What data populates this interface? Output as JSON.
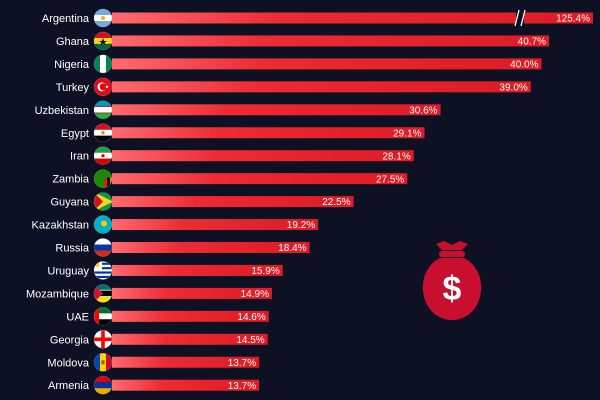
{
  "chart_data": {
    "type": "bar",
    "orientation": "horizontal",
    "title": "",
    "xlabel": "",
    "ylabel": "",
    "unit": "%",
    "xlim": [
      0,
      42
    ],
    "axis_break": {
      "category": "Argentina",
      "note": "bar truncated with a break mark"
    },
    "grid": false,
    "bar_color": "#e8222b",
    "bar_gradient_start": "#ff6a6f",
    "categories": [
      "Argentina",
      "Ghana",
      "Nigeria",
      "Turkey",
      "Uzbekistan",
      "Egypt",
      "Iran",
      "Zambia",
      "Guyana",
      "Kazakhstan",
      "Russia",
      "Uruguay",
      "Mozambique",
      "UAE",
      "Georgia",
      "Moldova",
      "Armenia"
    ],
    "values": [
      125.4,
      40.7,
      40.0,
      39.0,
      30.6,
      29.1,
      28.1,
      27.5,
      22.5,
      19.2,
      18.4,
      15.9,
      14.9,
      14.6,
      14.5,
      13.7,
      13.7
    ],
    "value_labels": [
      "125.4%",
      "40.7%",
      "40.0%",
      "39.0%",
      "30.6%",
      "29.1%",
      "28.1%",
      "27.5%",
      "22.5%",
      "19.2%",
      "18.4%",
      "15.9%",
      "14.9%",
      "14.6%",
      "14.5%",
      "13.7%",
      "13.7%"
    ],
    "flag_icons": [
      "flag-argentina-icon",
      "flag-ghana-icon",
      "flag-nigeria-icon",
      "flag-turkey-icon",
      "flag-uzbekistan-icon",
      "flag-egypt-icon",
      "flag-iran-icon",
      "flag-zambia-icon",
      "flag-guyana-icon",
      "flag-kazakhstan-icon",
      "flag-russia-icon",
      "flag-uruguay-icon",
      "flag-mozambique-icon",
      "flag-uae-icon",
      "flag-georgia-icon",
      "flag-moldova-icon",
      "flag-armenia-icon"
    ]
  },
  "decoration": {
    "icon": "money-bag-icon",
    "color": "#c8102e",
    "symbol": "$"
  },
  "colors": {
    "background": "#0e1124",
    "text": "#ffffff"
  }
}
